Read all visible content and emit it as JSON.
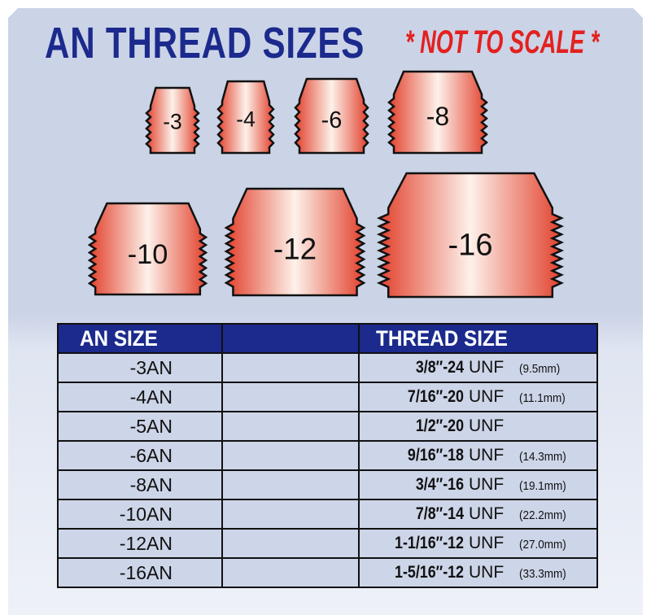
{
  "title": "AN THREAD SIZES",
  "note": "* NOT TO SCALE *",
  "colors": {
    "title": "#1b2a8c",
    "note": "#e3211f",
    "fitting": "#e8603f",
    "header": "#1b2a8c",
    "cell": "#cdd5e8"
  },
  "fittings": [
    {
      "label": "-3"
    },
    {
      "label": "-4"
    },
    {
      "label": "-6"
    },
    {
      "label": "-8"
    },
    {
      "label": "-10"
    },
    {
      "label": "-12"
    },
    {
      "label": "-16"
    }
  ],
  "table": {
    "headers": [
      "AN SIZE",
      "",
      "THREAD SIZE"
    ],
    "rows": [
      {
        "an": "-3AN",
        "thread": "3/8″-24",
        "unit": "UNF",
        "mm": "(9.5mm)"
      },
      {
        "an": "-4AN",
        "thread": "7/16″-20",
        "unit": "UNF",
        "mm": "(11.1mm)"
      },
      {
        "an": "-5AN",
        "thread": "1/2″-20",
        "unit": "UNF",
        "mm": ""
      },
      {
        "an": "-6AN",
        "thread": "9/16″-18",
        "unit": "UNF",
        "mm": "(14.3mm)"
      },
      {
        "an": "-8AN",
        "thread": "3/4″-16",
        "unit": "UNF",
        "mm": "(19.1mm)"
      },
      {
        "an": "-10AN",
        "thread": "7/8″-14",
        "unit": "UNF",
        "mm": "(22.2mm)"
      },
      {
        "an": "-12AN",
        "thread": "1-1/16″-12",
        "unit": "UNF",
        "mm": "(27.0mm)"
      },
      {
        "an": "-16AN",
        "thread": "1-5/16″-12",
        "unit": "UNF",
        "mm": "(33.3mm)"
      }
    ]
  }
}
